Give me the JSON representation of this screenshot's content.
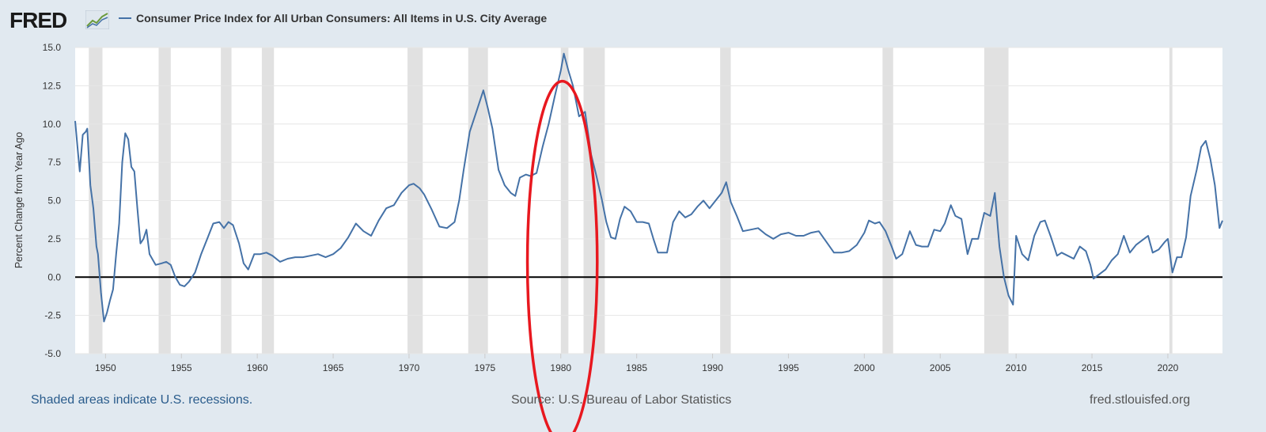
{
  "header": {
    "logo_text": "FRED",
    "logo_mark": "fred-chart-logo-icon",
    "legend_label": "Consumer Price Index for All Urban Consumers: All Items in U.S. City Average"
  },
  "footer": {
    "recessions_note": "Shaded areas indicate U.S. recessions.",
    "source": "Source: U.S. Bureau of Labor Statistics",
    "site": "fred.stlouisfed.org"
  },
  "colors": {
    "series": "#4572a7",
    "recession": "#e1e1e1",
    "annotation": "#e8181f",
    "background": "#e1e9f0"
  },
  "chart_data": {
    "type": "line",
    "title": "Consumer Price Index for All Urban Consumers: All Items in U.S. City Average",
    "xlabel": "",
    "ylabel": "Percent Change from Year Ago",
    "xlim": [
      1948,
      2023.6
    ],
    "ylim": [
      -5,
      15
    ],
    "x_ticks": [
      1950,
      1955,
      1960,
      1965,
      1970,
      1975,
      1980,
      1985,
      1990,
      1995,
      2000,
      2005,
      2010,
      2015,
      2020
    ],
    "y_ticks": [
      -5.0,
      -2.5,
      0.0,
      2.5,
      5.0,
      7.5,
      10.0,
      12.5,
      15.0
    ],
    "y_tick_labels": [
      "-5.0",
      "-2.5",
      "0.0",
      "2.5",
      "5.0",
      "7.5",
      "10.0",
      "12.5",
      "15.0"
    ],
    "grid": true,
    "zero_line": true,
    "recessions": [
      [
        1948.9,
        1949.8
      ],
      [
        1953.5,
        1954.3
      ],
      [
        1957.6,
        1958.3
      ],
      [
        1960.3,
        1961.1
      ],
      [
        1969.9,
        1970.9
      ],
      [
        1973.9,
        1975.2
      ],
      [
        1980.0,
        1980.5
      ],
      [
        1981.5,
        1982.9
      ],
      [
        1990.5,
        1991.2
      ],
      [
        2001.2,
        2001.9
      ],
      [
        2007.9,
        2009.5
      ],
      [
        2020.1,
        2020.3
      ]
    ],
    "annotation": {
      "shape": "ellipse",
      "center_x": 1980.1,
      "center_y": 1.0,
      "rx_years": 2.3,
      "ry_value": 11.8
    },
    "series": [
      {
        "name": "Consumer Price Index for All Urban Consumers: All Items in U.S. City Average",
        "points": [
          [
            1948.0,
            10.2
          ],
          [
            1948.2,
            8.0
          ],
          [
            1948.3,
            6.9
          ],
          [
            1948.5,
            9.3
          ],
          [
            1948.7,
            9.5
          ],
          [
            1948.8,
            9.7
          ],
          [
            1949.0,
            6.0
          ],
          [
            1949.2,
            4.5
          ],
          [
            1949.4,
            2.0
          ],
          [
            1949.5,
            1.5
          ],
          [
            1949.7,
            -1.0
          ],
          [
            1949.9,
            -2.9
          ],
          [
            1950.1,
            -2.3
          ],
          [
            1950.3,
            -1.5
          ],
          [
            1950.5,
            -0.8
          ],
          [
            1950.7,
            1.5
          ],
          [
            1950.9,
            3.5
          ],
          [
            1951.1,
            7.5
          ],
          [
            1951.3,
            9.4
          ],
          [
            1951.5,
            9.0
          ],
          [
            1951.7,
            7.2
          ],
          [
            1951.9,
            6.9
          ],
          [
            1952.1,
            4.5
          ],
          [
            1952.3,
            2.2
          ],
          [
            1952.5,
            2.5
          ],
          [
            1952.7,
            3.1
          ],
          [
            1952.9,
            1.5
          ],
          [
            1953.3,
            0.8
          ],
          [
            1953.7,
            0.9
          ],
          [
            1954.0,
            1.0
          ],
          [
            1954.3,
            0.8
          ],
          [
            1954.6,
            0.0
          ],
          [
            1954.9,
            -0.5
          ],
          [
            1955.2,
            -0.6
          ],
          [
            1955.5,
            -0.3
          ],
          [
            1955.9,
            0.3
          ],
          [
            1956.3,
            1.5
          ],
          [
            1956.7,
            2.5
          ],
          [
            1957.1,
            3.5
          ],
          [
            1957.5,
            3.6
          ],
          [
            1957.8,
            3.2
          ],
          [
            1958.1,
            3.6
          ],
          [
            1958.4,
            3.4
          ],
          [
            1958.8,
            2.2
          ],
          [
            1959.1,
            0.9
          ],
          [
            1959.4,
            0.5
          ],
          [
            1959.8,
            1.5
          ],
          [
            1960.2,
            1.5
          ],
          [
            1960.6,
            1.6
          ],
          [
            1961.0,
            1.4
          ],
          [
            1961.5,
            1.0
          ],
          [
            1962.0,
            1.2
          ],
          [
            1962.5,
            1.3
          ],
          [
            1963.0,
            1.3
          ],
          [
            1963.5,
            1.4
          ],
          [
            1964.0,
            1.5
          ],
          [
            1964.5,
            1.3
          ],
          [
            1965.0,
            1.5
          ],
          [
            1965.5,
            1.9
          ],
          [
            1966.0,
            2.6
          ],
          [
            1966.5,
            3.5
          ],
          [
            1967.0,
            3.0
          ],
          [
            1967.5,
            2.7
          ],
          [
            1968.0,
            3.7
          ],
          [
            1968.5,
            4.5
          ],
          [
            1969.0,
            4.7
          ],
          [
            1969.5,
            5.5
          ],
          [
            1970.0,
            6.0
          ],
          [
            1970.3,
            6.1
          ],
          [
            1970.7,
            5.8
          ],
          [
            1971.0,
            5.4
          ],
          [
            1971.5,
            4.4
          ],
          [
            1972.0,
            3.3
          ],
          [
            1972.5,
            3.2
          ],
          [
            1973.0,
            3.6
          ],
          [
            1973.3,
            5.0
          ],
          [
            1973.6,
            7.0
          ],
          [
            1974.0,
            9.5
          ],
          [
            1974.5,
            11.0
          ],
          [
            1974.9,
            12.2
          ],
          [
            1975.2,
            11.0
          ],
          [
            1975.5,
            9.7
          ],
          [
            1975.9,
            7.0
          ],
          [
            1976.3,
            6.0
          ],
          [
            1976.7,
            5.5
          ],
          [
            1977.0,
            5.3
          ],
          [
            1977.3,
            6.5
          ],
          [
            1977.7,
            6.7
          ],
          [
            1978.0,
            6.6
          ],
          [
            1978.4,
            6.8
          ],
          [
            1978.8,
            8.5
          ],
          [
            1979.2,
            10.0
          ],
          [
            1979.6,
            11.8
          ],
          [
            1980.0,
            13.5
          ],
          [
            1980.2,
            14.6
          ],
          [
            1980.5,
            13.5
          ],
          [
            1980.8,
            12.5
          ],
          [
            1981.2,
            10.5
          ],
          [
            1981.6,
            10.8
          ],
          [
            1982.0,
            8.0
          ],
          [
            1982.3,
            6.8
          ],
          [
            1982.7,
            5.1
          ],
          [
            1983.0,
            3.6
          ],
          [
            1983.3,
            2.6
          ],
          [
            1983.6,
            2.5
          ],
          [
            1983.9,
            3.8
          ],
          [
            1984.2,
            4.6
          ],
          [
            1984.6,
            4.3
          ],
          [
            1985.0,
            3.6
          ],
          [
            1985.4,
            3.6
          ],
          [
            1985.8,
            3.5
          ],
          [
            1986.1,
            2.5
          ],
          [
            1986.4,
            1.6
          ],
          [
            1986.7,
            1.6
          ],
          [
            1987.0,
            1.6
          ],
          [
            1987.4,
            3.6
          ],
          [
            1987.8,
            4.3
          ],
          [
            1988.2,
            3.9
          ],
          [
            1988.6,
            4.1
          ],
          [
            1989.0,
            4.6
          ],
          [
            1989.4,
            5.0
          ],
          [
            1989.8,
            4.5
          ],
          [
            1990.2,
            5.0
          ],
          [
            1990.6,
            5.5
          ],
          [
            1990.9,
            6.2
          ],
          [
            1991.2,
            4.9
          ],
          [
            1991.6,
            4.0
          ],
          [
            1992.0,
            3.0
          ],
          [
            1992.5,
            3.1
          ],
          [
            1993.0,
            3.2
          ],
          [
            1993.5,
            2.8
          ],
          [
            1994.0,
            2.5
          ],
          [
            1994.5,
            2.8
          ],
          [
            1995.0,
            2.9
          ],
          [
            1995.5,
            2.7
          ],
          [
            1996.0,
            2.7
          ],
          [
            1996.5,
            2.9
          ],
          [
            1997.0,
            3.0
          ],
          [
            1997.5,
            2.3
          ],
          [
            1998.0,
            1.6
          ],
          [
            1998.5,
            1.6
          ],
          [
            1999.0,
            1.7
          ],
          [
            1999.5,
            2.1
          ],
          [
            2000.0,
            2.9
          ],
          [
            2000.3,
            3.7
          ],
          [
            2000.7,
            3.5
          ],
          [
            2001.0,
            3.6
          ],
          [
            2001.4,
            3.0
          ],
          [
            2001.8,
            2.0
          ],
          [
            2002.1,
            1.2
          ],
          [
            2002.5,
            1.5
          ],
          [
            2003.0,
            3.0
          ],
          [
            2003.4,
            2.1
          ],
          [
            2003.8,
            2.0
          ],
          [
            2004.2,
            2.0
          ],
          [
            2004.6,
            3.1
          ],
          [
            2005.0,
            3.0
          ],
          [
            2005.3,
            3.5
          ],
          [
            2005.7,
            4.7
          ],
          [
            2006.0,
            4.0
          ],
          [
            2006.4,
            3.8
          ],
          [
            2006.8,
            1.5
          ],
          [
            2007.1,
            2.5
          ],
          [
            2007.5,
            2.5
          ],
          [
            2007.9,
            4.2
          ],
          [
            2008.3,
            4.0
          ],
          [
            2008.6,
            5.5
          ],
          [
            2008.9,
            2.0
          ],
          [
            2009.2,
            0.0
          ],
          [
            2009.5,
            -1.2
          ],
          [
            2009.8,
            -1.8
          ],
          [
            2010.0,
            2.7
          ],
          [
            2010.4,
            1.5
          ],
          [
            2010.8,
            1.1
          ],
          [
            2011.2,
            2.7
          ],
          [
            2011.6,
            3.6
          ],
          [
            2011.9,
            3.7
          ],
          [
            2012.3,
            2.6
          ],
          [
            2012.7,
            1.4
          ],
          [
            2013.0,
            1.6
          ],
          [
            2013.4,
            1.4
          ],
          [
            2013.8,
            1.2
          ],
          [
            2014.2,
            2.0
          ],
          [
            2014.6,
            1.7
          ],
          [
            2014.9,
            0.8
          ],
          [
            2015.1,
            -0.1
          ],
          [
            2015.5,
            0.2
          ],
          [
            2015.9,
            0.5
          ],
          [
            2016.3,
            1.1
          ],
          [
            2016.7,
            1.5
          ],
          [
            2017.1,
            2.7
          ],
          [
            2017.5,
            1.6
          ],
          [
            2017.9,
            2.1
          ],
          [
            2018.3,
            2.4
          ],
          [
            2018.7,
            2.7
          ],
          [
            2019.0,
            1.6
          ],
          [
            2019.4,
            1.8
          ],
          [
            2019.8,
            2.3
          ],
          [
            2020.0,
            2.5
          ],
          [
            2020.3,
            0.3
          ],
          [
            2020.6,
            1.3
          ],
          [
            2020.9,
            1.3
          ],
          [
            2021.2,
            2.6
          ],
          [
            2021.5,
            5.3
          ],
          [
            2021.9,
            7.0
          ],
          [
            2022.2,
            8.5
          ],
          [
            2022.5,
            8.9
          ],
          [
            2022.8,
            7.7
          ],
          [
            2023.1,
            6.0
          ],
          [
            2023.4,
            3.2
          ],
          [
            2023.6,
            3.7
          ]
        ]
      }
    ]
  }
}
